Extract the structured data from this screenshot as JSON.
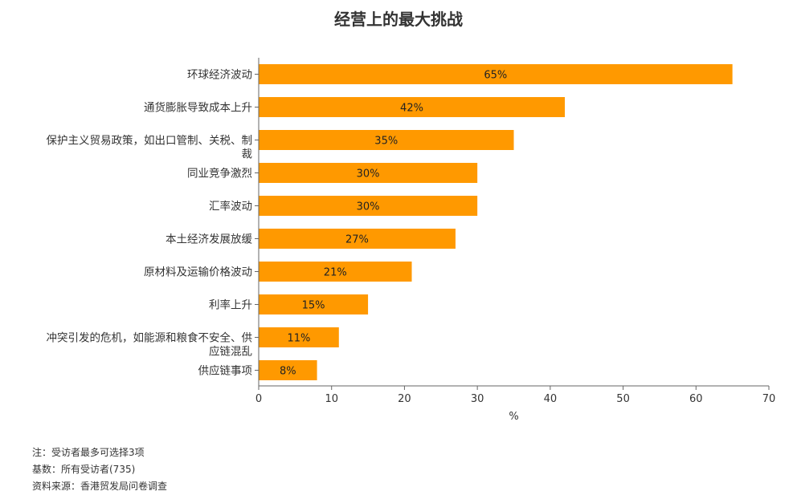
{
  "chart_data": {
    "type": "bar",
    "orientation": "horizontal",
    "title": "经营上的最大挑战",
    "xlabel": "%",
    "ylabel": "",
    "xlim": [
      0,
      70
    ],
    "xticks": [
      0,
      10,
      20,
      30,
      40,
      50,
      60,
      70
    ],
    "categories": [
      "环球经济波动",
      "通货膨胀导致成本上升",
      "保护主义贸易政策，如出口管制、关税、制裁",
      "同业竞争激烈",
      "汇率波动",
      "本土经济发展放缓",
      "原材料及运输价格波动",
      "利率上升",
      "冲突引发的危机，如能源和粮食不安全、供应链混乱",
      "供应链事项"
    ],
    "category_lines": [
      [
        "环球经济波动"
      ],
      [
        "通货膨胀导致成本上升"
      ],
      [
        "保护主义贸易政策，如出口管制、关税、制",
        "裁"
      ],
      [
        "同业竞争激烈"
      ],
      [
        "汇率波动"
      ],
      [
        "本土经济发展放缓"
      ],
      [
        "原材料及运输价格波动"
      ],
      [
        "利率上升"
      ],
      [
        "冲突引发的危机，如能源和粮食不安全、供",
        "应链混乱"
      ],
      [
        "供应链事项"
      ]
    ],
    "values": [
      65,
      42,
      35,
      30,
      30,
      27,
      21,
      15,
      11,
      8
    ],
    "value_labels": [
      "65%",
      "42%",
      "35%",
      "30%",
      "30%",
      "27%",
      "21%",
      "15%",
      "11%",
      "8%"
    ],
    "bar_color": "#FF9900",
    "grid": false,
    "legend": "none"
  },
  "notes": {
    "note": "注：受访者最多可选择3项",
    "base": "基数：所有受访者(735)",
    "source": "资料来源：香港贸发局问卷调查"
  }
}
